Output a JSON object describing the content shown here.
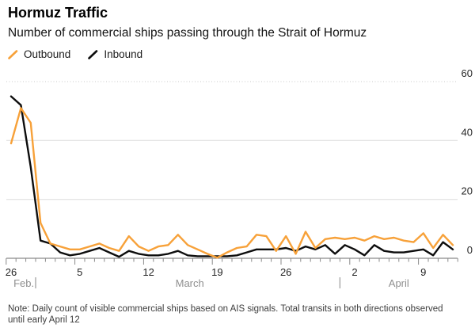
{
  "header": {
    "title": "Hormuz Traffic",
    "subtitle": "Number of commercial ships passing through the Strait of Hormuz"
  },
  "legend": {
    "items": [
      {
        "label": "Outbound",
        "color": "#F7A139"
      },
      {
        "label": "Inbound",
        "color": "#0D0D0D"
      }
    ]
  },
  "note": {
    "line1": "Note: Daily count of visible commercial ships based on AIS signals. Total transits in both directions observed",
    "line2": "until early April 12"
  },
  "chart_data": {
    "type": "line",
    "title": "Hormuz Traffic",
    "xlabel": "",
    "ylabel": "",
    "ylim": [
      0,
      60
    ],
    "grid": "horizontal",
    "legend_position": "top-left",
    "x": [
      "Feb 26",
      "Feb 27",
      "Feb 28",
      "Mar 1",
      "Mar 2",
      "Mar 3",
      "Mar 4",
      "Mar 5",
      "Mar 6",
      "Mar 7",
      "Mar 8",
      "Mar 9",
      "Mar 10",
      "Mar 11",
      "Mar 12",
      "Mar 13",
      "Mar 14",
      "Mar 15",
      "Mar 16",
      "Mar 17",
      "Mar 18",
      "Mar 19",
      "Mar 20",
      "Mar 21",
      "Mar 22",
      "Mar 23",
      "Mar 24",
      "Mar 25",
      "Mar 26",
      "Mar 27",
      "Mar 28",
      "Mar 29",
      "Mar 30",
      "Mar 31",
      "Apr 1",
      "Apr 2",
      "Apr 3",
      "Apr 4",
      "Apr 5",
      "Apr 6",
      "Apr 7",
      "Apr 8",
      "Apr 9",
      "Apr 10",
      "Apr 11",
      "Apr 12"
    ],
    "series": [
      {
        "name": "Outbound",
        "color": "#F7A139",
        "values": [
          39,
          51,
          46,
          12,
          5,
          4,
          3,
          3,
          4,
          5,
          3.5,
          2.5,
          7.5,
          4,
          2.5,
          4,
          4.5,
          8,
          4.5,
          3,
          1.5,
          0.2,
          2,
          3.5,
          4,
          8,
          7.5,
          2.5,
          7.5,
          1.5,
          9,
          3.5,
          6.5,
          7,
          6.5,
          7,
          6,
          7.5,
          6.5,
          7,
          6,
          5.5,
          8.5,
          3.5,
          8,
          4.5
        ]
      },
      {
        "name": "Inbound",
        "color": "#0D0D0D",
        "values": [
          55,
          52,
          31,
          6,
          5,
          2,
          1,
          1.5,
          2.5,
          3.5,
          2,
          0.5,
          2.5,
          1.5,
          1,
          1,
          1.5,
          2.5,
          1,
          0.7,
          0.7,
          0.7,
          0.7,
          1,
          2,
          3,
          3,
          3,
          3.5,
          2.5,
          4,
          3,
          4.5,
          1.5,
          4.5,
          3,
          1,
          4.5,
          2.5,
          2,
          2,
          2.5,
          3,
          1,
          5.5,
          3
        ]
      }
    ],
    "y_axis": {
      "side": "right",
      "ticks": [
        {
          "value": 60,
          "grid": "dotted"
        },
        {
          "value": 40,
          "grid": "solid"
        },
        {
          "value": 20,
          "grid": "solid"
        },
        {
          "value": 0,
          "grid": "axis"
        }
      ]
    },
    "x_tick_labels": [
      {
        "label": "26",
        "index": 0
      },
      {
        "label": "5",
        "index": 7
      },
      {
        "label": "12",
        "index": 14
      },
      {
        "label": "19",
        "index": 21
      },
      {
        "label": "26",
        "index": 28
      },
      {
        "label": "2",
        "index": 35
      },
      {
        "label": "9",
        "index": 42
      }
    ],
    "months": [
      {
        "label": "Feb.",
        "center_index": 1.3,
        "divider_index": 2.5
      },
      {
        "label": "March",
        "center_index": 18.2,
        "divider_index": 33.5
      },
      {
        "label": "April",
        "center_index": 39.5,
        "divider_index": null
      }
    ]
  }
}
